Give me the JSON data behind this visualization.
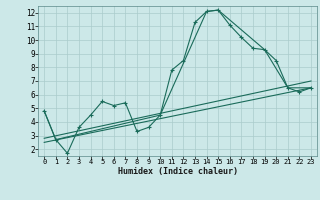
{
  "bg_color": "#cce8e8",
  "grid_color": "#aacccc",
  "line_color": "#1a6b5a",
  "xlabel": "Humidex (Indice chaleur)",
  "xlim": [
    -0.5,
    23.5
  ],
  "ylim": [
    1.5,
    12.5
  ],
  "xticks": [
    0,
    1,
    2,
    3,
    4,
    5,
    6,
    7,
    8,
    9,
    10,
    11,
    12,
    13,
    14,
    15,
    16,
    17,
    18,
    19,
    20,
    21,
    22,
    23
  ],
  "yticks": [
    2,
    3,
    4,
    5,
    6,
    7,
    8,
    9,
    10,
    11,
    12
  ],
  "series1_x": [
    0,
    1,
    2,
    3,
    4,
    5,
    6,
    7,
    8,
    9,
    10,
    11,
    12,
    13,
    14,
    15,
    16,
    17,
    18,
    19,
    20,
    21,
    22,
    23
  ],
  "series1_y": [
    4.8,
    2.7,
    1.7,
    3.6,
    4.5,
    5.5,
    5.2,
    5.4,
    3.3,
    3.6,
    4.5,
    7.8,
    8.5,
    11.3,
    12.1,
    12.2,
    11.1,
    10.2,
    9.4,
    9.3,
    8.5,
    6.5,
    6.2,
    6.5
  ],
  "series2_x": [
    0,
    1,
    10,
    14,
    15,
    19,
    21,
    23
  ],
  "series2_y": [
    4.8,
    2.7,
    4.5,
    12.1,
    12.2,
    9.3,
    6.5,
    6.5
  ],
  "series3_x": [
    0,
    23
  ],
  "series3_y": [
    2.8,
    7.0
  ],
  "series4_x": [
    0,
    23
  ],
  "series4_y": [
    2.5,
    6.5
  ]
}
